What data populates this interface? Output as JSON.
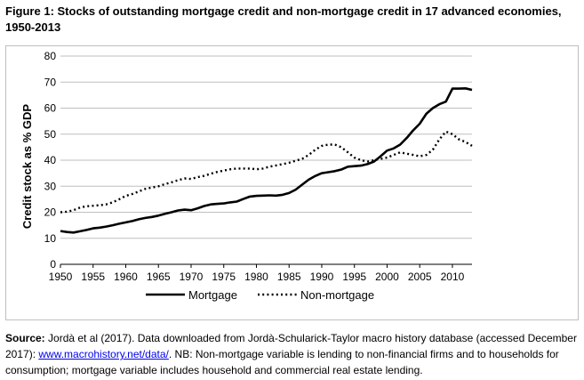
{
  "figure": {
    "title": "Figure 1: Stocks of outstanding mortgage credit and non-mortgage credit in 17 advanced economies, 1950-2013"
  },
  "source": {
    "label": "Source:",
    "text1": " Jordà et al (2017). Data downloaded from Jordà-Schularick-Taylor macro history database (accessed December 2017): ",
    "link": "www.macrohistory.net/data/",
    "text2": ". NB: Non-mortgage variable is lending to non-financial firms and to households for consumption; mortgage variable includes household and commercial real estate lending."
  },
  "chart_data": {
    "type": "line",
    "title": "",
    "xlabel": "",
    "ylabel": "Credit stock as % GDP",
    "xlim": [
      1950,
      2013
    ],
    "ylim": [
      0,
      80
    ],
    "yticks": [
      "0",
      "10",
      "20",
      "30",
      "40",
      "50",
      "60",
      "70",
      "80"
    ],
    "xticks": [
      "1950",
      "1955",
      "1960",
      "1965",
      "1970",
      "1975",
      "1980",
      "1985",
      "1990",
      "1995",
      "2000",
      "2005",
      "2010"
    ],
    "grid": "horizontal",
    "legend": "bottom",
    "series": [
      {
        "name": "Mortgage",
        "style": "solid",
        "color": "#000000",
        "x": [
          1950,
          1951,
          1952,
          1953,
          1954,
          1955,
          1956,
          1957,
          1958,
          1959,
          1960,
          1961,
          1962,
          1963,
          1964,
          1965,
          1966,
          1967,
          1968,
          1969,
          1970,
          1971,
          1972,
          1973,
          1974,
          1975,
          1976,
          1977,
          1978,
          1979,
          1980,
          1981,
          1982,
          1983,
          1984,
          1985,
          1986,
          1987,
          1988,
          1989,
          1990,
          1991,
          1992,
          1993,
          1994,
          1995,
          1996,
          1997,
          1998,
          1999,
          2000,
          2001,
          2002,
          2003,
          2004,
          2005,
          2006,
          2007,
          2008,
          2009,
          2010,
          2011,
          2012,
          2013
        ],
        "y": [
          12.8,
          12.4,
          12.2,
          12.7,
          13.2,
          13.8,
          14.1,
          14.5,
          15.0,
          15.6,
          16.1,
          16.6,
          17.3,
          17.8,
          18.2,
          18.7,
          19.4,
          20.0,
          20.7,
          21.0,
          20.8,
          21.5,
          22.4,
          23.0,
          23.2,
          23.4,
          23.8,
          24.1,
          25.1,
          26.0,
          26.3,
          26.4,
          26.5,
          26.4,
          26.7,
          27.4,
          28.7,
          30.6,
          32.5,
          33.9,
          35.0,
          35.4,
          35.8,
          36.4,
          37.5,
          37.7,
          37.9,
          38.5,
          39.5,
          41.5,
          43.7,
          44.5,
          46.0,
          48.5,
          51.5,
          54.0,
          57.8,
          60.0,
          61.5,
          62.5,
          67.5,
          67.5,
          67.6,
          67.0
        ]
      },
      {
        "name": "Non-mortgage",
        "style": "dotted",
        "color": "#000000",
        "x": [
          1950,
          1951,
          1952,
          1953,
          1954,
          1955,
          1956,
          1957,
          1958,
          1959,
          1960,
          1961,
          1962,
          1963,
          1964,
          1965,
          1966,
          1967,
          1968,
          1969,
          1970,
          1971,
          1972,
          1973,
          1974,
          1975,
          1976,
          1977,
          1978,
          1979,
          1980,
          1981,
          1982,
          1983,
          1984,
          1985,
          1986,
          1987,
          1988,
          1989,
          1990,
          1991,
          1992,
          1993,
          1994,
          1995,
          1996,
          1997,
          1998,
          1999,
          2000,
          2001,
          2002,
          2003,
          2004,
          2005,
          2006,
          2007,
          2008,
          2009,
          2010,
          2011,
          2012,
          2013
        ],
        "y": [
          20.0,
          20.2,
          20.8,
          21.8,
          22.3,
          22.5,
          22.7,
          23.0,
          23.8,
          25.0,
          26.3,
          27.0,
          28.0,
          29.0,
          29.5,
          30.0,
          30.8,
          31.5,
          32.3,
          33.0,
          32.8,
          33.5,
          34.0,
          34.8,
          35.5,
          36.0,
          36.5,
          36.8,
          36.8,
          36.8,
          36.5,
          36.8,
          37.5,
          38.0,
          38.5,
          39.0,
          39.8,
          40.5,
          42.0,
          44.0,
          45.5,
          46.0,
          46.0,
          45.0,
          43.0,
          41.0,
          40.0,
          39.5,
          40.0,
          40.5,
          41.0,
          42.0,
          43.0,
          42.5,
          42.0,
          41.5,
          42.0,
          44.0,
          48.0,
          51.0,
          50.0,
          48.0,
          47.0,
          45.5
        ]
      }
    ]
  }
}
